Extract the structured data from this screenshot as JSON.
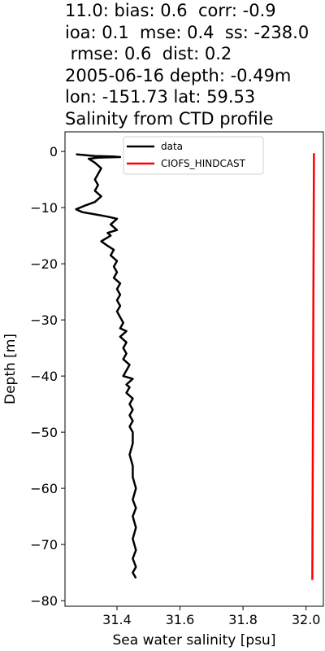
{
  "title_lines": [
    "11.0: bias: 0.6  corr: -0.9",
    "ioa: 0.1  mse: 0.4  ss: -238.0",
    " rmse: 0.6  dist: 0.2",
    "2005-06-16 depth: -0.49m",
    "lon: -151.73 lat: 59.53",
    "Salinity from CTD profile"
  ],
  "chart_data": {
    "type": "line",
    "xlabel": "Sea water salinity [psu]",
    "ylabel": "Depth [m]",
    "xlim": [
      31.235,
      32.055
    ],
    "ylim": [
      -81,
      3.5
    ],
    "xticks": [
      31.4,
      31.6,
      31.8,
      32.0
    ],
    "xtick_labels": [
      "31.4",
      "31.6",
      "31.8",
      "32.0"
    ],
    "yticks": [
      0,
      -10,
      -20,
      -30,
      -40,
      -50,
      -60,
      -70,
      -80
    ],
    "ytick_labels": [
      "0",
      "−10",
      "−20",
      "−30",
      "−40",
      "−50",
      "−60",
      "−70",
      "−80"
    ],
    "legend_position": "upper-center",
    "series": [
      {
        "name": "data",
        "color": "#000000",
        "points": [
          [
            31.27,
            -0.5
          ],
          [
            31.33,
            -0.8
          ],
          [
            31.39,
            -0.9
          ],
          [
            31.41,
            -1.0
          ],
          [
            31.34,
            -1.1
          ],
          [
            31.31,
            -1.3
          ],
          [
            31.33,
            -2.0
          ],
          [
            31.35,
            -3.0
          ],
          [
            31.34,
            -4.0
          ],
          [
            31.33,
            -5.0
          ],
          [
            31.34,
            -6.0
          ],
          [
            31.33,
            -7.0
          ],
          [
            31.35,
            -8.0
          ],
          [
            31.33,
            -9.0
          ],
          [
            31.3,
            -9.6
          ],
          [
            31.27,
            -10.3
          ],
          [
            31.29,
            -10.8
          ],
          [
            31.33,
            -11.2
          ],
          [
            31.37,
            -11.6
          ],
          [
            31.4,
            -12.0
          ],
          [
            31.38,
            -13.0
          ],
          [
            31.4,
            -14.0
          ],
          [
            31.37,
            -14.5
          ],
          [
            31.38,
            -15.0
          ],
          [
            31.35,
            -16.0
          ],
          [
            31.37,
            -16.8
          ],
          [
            31.39,
            -17.5
          ],
          [
            31.38,
            -18.5
          ],
          [
            31.4,
            -19.5
          ],
          [
            31.39,
            -20.5
          ],
          [
            31.4,
            -21.5
          ],
          [
            31.39,
            -22.5
          ],
          [
            31.41,
            -23.5
          ],
          [
            31.4,
            -24.5
          ],
          [
            31.41,
            -25.5
          ],
          [
            31.4,
            -26.5
          ],
          [
            31.41,
            -27.5
          ],
          [
            31.4,
            -28.5
          ],
          [
            31.41,
            -29.5
          ],
          [
            31.42,
            -30.5
          ],
          [
            31.41,
            -31.5
          ],
          [
            31.43,
            -32.0
          ],
          [
            31.41,
            -33.0
          ],
          [
            31.43,
            -34.0
          ],
          [
            31.42,
            -35.0
          ],
          [
            31.43,
            -36.0
          ],
          [
            31.42,
            -37.0
          ],
          [
            31.44,
            -38.0
          ],
          [
            31.43,
            -39.0
          ],
          [
            31.42,
            -40.0
          ],
          [
            31.45,
            -40.5
          ],
          [
            31.43,
            -41.5
          ],
          [
            31.44,
            -42.0
          ],
          [
            31.43,
            -43.0
          ],
          [
            31.45,
            -44.0
          ],
          [
            31.44,
            -45.0
          ],
          [
            31.45,
            -46.0
          ],
          [
            31.44,
            -47.0
          ],
          [
            31.45,
            -48.0
          ],
          [
            31.44,
            -49.0
          ],
          [
            31.45,
            -50.0
          ],
          [
            31.45,
            -52.0
          ],
          [
            31.44,
            -54.0
          ],
          [
            31.45,
            -56.0
          ],
          [
            31.45,
            -58.0
          ],
          [
            31.46,
            -60.0
          ],
          [
            31.45,
            -62.0
          ],
          [
            31.46,
            -63.5
          ],
          [
            31.45,
            -65.0
          ],
          [
            31.46,
            -67.0
          ],
          [
            31.45,
            -69.0
          ],
          [
            31.46,
            -71.0
          ],
          [
            31.45,
            -72.5
          ],
          [
            31.46,
            -74.0
          ],
          [
            31.45,
            -75.0
          ],
          [
            31.46,
            -76.0
          ]
        ]
      },
      {
        "name": "CIOFS_HINDCAST",
        "color": "#ff0000",
        "points": [
          [
            32.025,
            -0.3
          ],
          [
            32.02,
            -76.3
          ]
        ]
      }
    ]
  }
}
